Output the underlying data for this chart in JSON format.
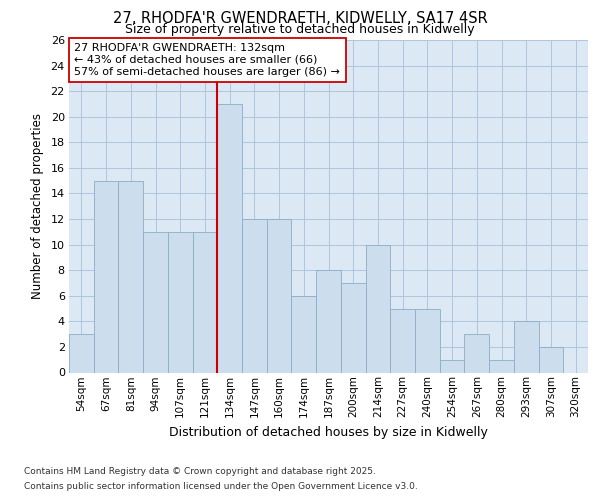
{
  "title_line1": "27, RHODFA'R GWENDRAETH, KIDWELLY, SA17 4SR",
  "title_line2": "Size of property relative to detached houses in Kidwelly",
  "xlabel": "Distribution of detached houses by size in Kidwelly",
  "ylabel": "Number of detached properties",
  "categories": [
    "54sqm",
    "67sqm",
    "81sqm",
    "94sqm",
    "107sqm",
    "121sqm",
    "134sqm",
    "147sqm",
    "160sqm",
    "174sqm",
    "187sqm",
    "200sqm",
    "214sqm",
    "227sqm",
    "240sqm",
    "254sqm",
    "267sqm",
    "280sqm",
    "293sqm",
    "307sqm",
    "320sqm"
  ],
  "values": [
    3,
    15,
    15,
    11,
    11,
    11,
    21,
    12,
    12,
    6,
    8,
    7,
    10,
    5,
    5,
    1,
    3,
    1,
    4,
    2,
    0
  ],
  "bar_color": "#ccdded",
  "bar_edge_color": "#8baec8",
  "vline_x_index": 6,
  "vline_color": "#cc0000",
  "annotation_title": "27 RHODFA'R GWENDRAETH: 132sqm",
  "annotation_line1": "← 43% of detached houses are smaller (66)",
  "annotation_line2": "57% of semi-detached houses are larger (86) →",
  "annotation_box_color": "#ffffff",
  "annotation_box_edge": "#cc0000",
  "ylim": [
    0,
    26
  ],
  "yticks": [
    0,
    2,
    4,
    6,
    8,
    10,
    12,
    14,
    16,
    18,
    20,
    22,
    24,
    26
  ],
  "grid_color": "#adc6de",
  "background_color": "#dce9f5",
  "footer_line1": "Contains HM Land Registry data © Crown copyright and database right 2025.",
  "footer_line2": "Contains public sector information licensed under the Open Government Licence v3.0."
}
